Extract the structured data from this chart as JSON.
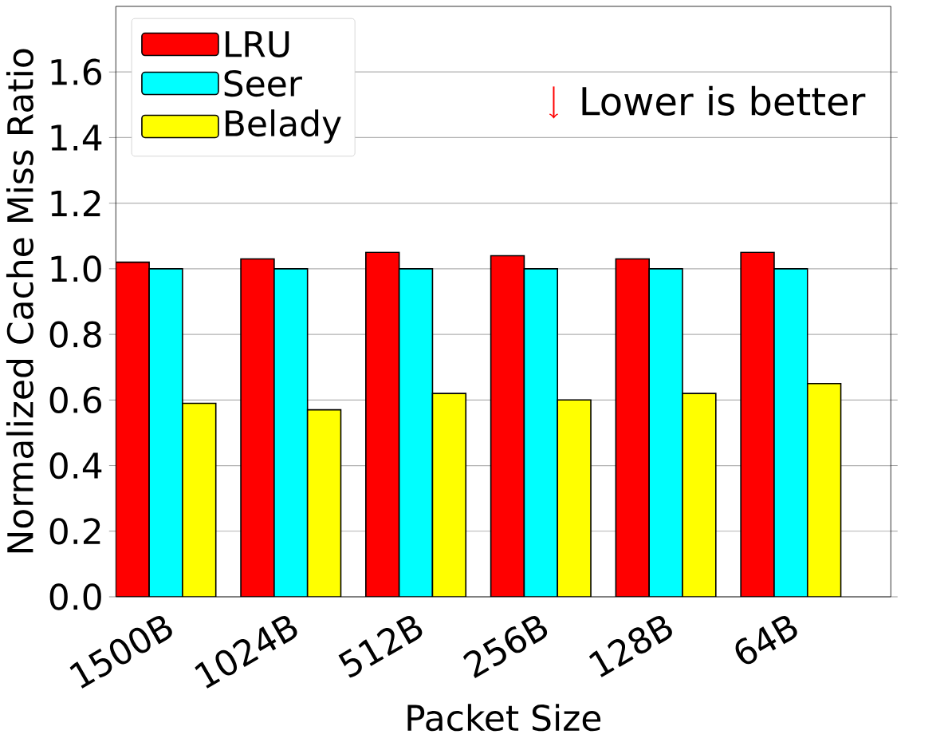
{
  "chart_data": {
    "type": "bar",
    "xlabel": "Packet Size",
    "ylabel": "Normalized Cache Miss Ratio",
    "categories": [
      "1500B",
      "1024B",
      "512B",
      "256B",
      "128B",
      "64B"
    ],
    "series": [
      {
        "name": "LRU",
        "color": "#ff0000",
        "values": [
          1.02,
          1.03,
          1.05,
          1.04,
          1.03,
          1.05
        ]
      },
      {
        "name": "Seer",
        "color": "#00ffff",
        "values": [
          1.0,
          1.0,
          1.0,
          1.0,
          1.0,
          1.0
        ]
      },
      {
        "name": "Belady",
        "color": "#ffff00",
        "values": [
          0.59,
          0.57,
          0.62,
          0.6,
          0.62,
          0.65
        ]
      }
    ],
    "ylim": [
      0,
      1.8
    ],
    "yticks": [
      {
        "value": 0,
        "label": "0.0"
      },
      0.2,
      0.4,
      0.6,
      0.8,
      {
        "value": 1,
        "label": "1.0"
      },
      1.2,
      1.4,
      1.6
    ],
    "grid": "y",
    "legend": "top left",
    "annotations": [
      "Lower is better"
    ]
  }
}
